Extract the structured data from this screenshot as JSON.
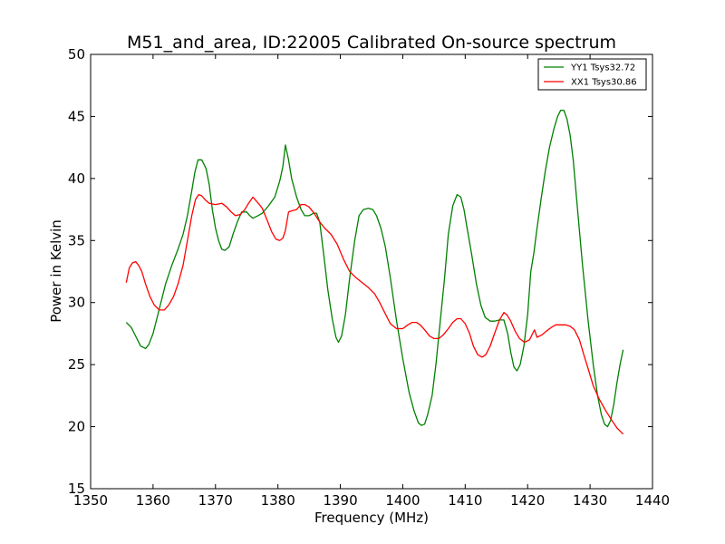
{
  "chart_data": {
    "type": "line",
    "title": "M51_and_area, ID:22005 Calibrated On-source spectrum",
    "xlabel": "Frequency (MHz)",
    "ylabel": "Power in Kelvin",
    "xlim": [
      1350,
      1440
    ],
    "ylim": [
      15,
      50
    ],
    "xticks": [
      1350,
      1360,
      1370,
      1380,
      1390,
      1400,
      1410,
      1420,
      1430,
      1440
    ],
    "yticks": [
      15,
      20,
      25,
      30,
      35,
      40,
      45,
      50
    ],
    "grid": false,
    "legend_position": "top-right",
    "series": [
      {
        "name": "YY1 Tsys32.72",
        "color": "#008000",
        "x": [
          1355.7,
          1356.5,
          1357.3,
          1358,
          1358.8,
          1359.3,
          1360,
          1361,
          1362,
          1363,
          1364,
          1364.8,
          1365.5,
          1366.2,
          1366.7,
          1367.2,
          1367.8,
          1368.5,
          1369,
          1369.5,
          1370,
          1370.5,
          1371,
          1371.5,
          1372.2,
          1372.8,
          1373.5,
          1374.2,
          1375,
          1375.5,
          1376,
          1376.8,
          1377.5,
          1378.5,
          1379.5,
          1380.3,
          1380.8,
          1381.2,
          1381.7,
          1382.2,
          1383,
          1383.7,
          1384.3,
          1385,
          1385.7,
          1386.2,
          1386.7,
          1387.3,
          1388,
          1388.7,
          1389.3,
          1389.7,
          1390.2,
          1390.8,
          1391.5,
          1392.3,
          1393,
          1393.7,
          1394.5,
          1395.2,
          1395.8,
          1396.5,
          1397.2,
          1398,
          1399,
          1400,
          1401,
          1401.8,
          1402.5,
          1403,
          1403.5,
          1404,
          1404.7,
          1405.3,
          1406,
          1406.7,
          1407.3,
          1408,
          1408.7,
          1409.3,
          1409.8,
          1410.3,
          1411,
          1411.8,
          1412.5,
          1413.2,
          1414,
          1414.7,
          1415.5,
          1416.2,
          1416.8,
          1417.3,
          1417.8,
          1418.3,
          1418.8,
          1419.4,
          1420,
          1420.5,
          1421,
          1421.5,
          1422.2,
          1422.8,
          1423.5,
          1424.2,
          1424.8,
          1425.3,
          1425.8,
          1426.3,
          1426.8,
          1427.3,
          1428,
          1428.8,
          1429.7,
          1430.5,
          1431.2,
          1431.8,
          1432.3,
          1432.8,
          1433.3,
          1433.8,
          1434.3,
          1434.8,
          1435.3
        ],
        "y": [
          28.4,
          28,
          27.2,
          26.5,
          26.3,
          26.6,
          27.5,
          29.5,
          31.5,
          33,
          34.3,
          35.5,
          37,
          39,
          40.5,
          41.5,
          41.5,
          40.8,
          39.5,
          37.5,
          36,
          35,
          34.3,
          34.2,
          34.5,
          35.5,
          36.5,
          37.3,
          37.3,
          37,
          36.8,
          37,
          37.2,
          37.8,
          38.5,
          39.8,
          41,
          42.7,
          41.5,
          40,
          38.5,
          37.5,
          37,
          37,
          37.2,
          37.2,
          36.5,
          34,
          31,
          28.7,
          27.2,
          26.8,
          27.3,
          29,
          32,
          35,
          37,
          37.5,
          37.6,
          37.5,
          37,
          36,
          34.5,
          32,
          28.5,
          25.5,
          22.8,
          21.3,
          20.3,
          20.1,
          20.2,
          21,
          22.5,
          25,
          28.5,
          32,
          35.5,
          37.8,
          38.7,
          38.5,
          37.5,
          36,
          34,
          31.5,
          29.8,
          28.8,
          28.5,
          28.5,
          28.6,
          28.6,
          27.5,
          26,
          24.8,
          24.5,
          25,
          26.5,
          29,
          32.5,
          34,
          36,
          38.5,
          40.5,
          42.5,
          44,
          45,
          45.5,
          45.5,
          44.8,
          43.5,
          41.5,
          37.5,
          33,
          28.5,
          25,
          22.5,
          21,
          20.2,
          20,
          20.5,
          21.8,
          23.5,
          25,
          26.2
        ]
      },
      {
        "name": "XX1 Tsys30.86",
        "color": "#ff0000",
        "x": [
          1355.7,
          1356.2,
          1356.7,
          1357.2,
          1357.7,
          1358.2,
          1358.8,
          1359.5,
          1360.2,
          1361,
          1361.8,
          1362.5,
          1363.3,
          1364,
          1364.8,
          1365.5,
          1366.2,
          1366.8,
          1367.3,
          1367.8,
          1368.3,
          1369,
          1370,
          1371,
          1371.8,
          1372.5,
          1373.2,
          1374,
          1374.7,
          1375.3,
          1376,
          1376.7,
          1377.5,
          1378.3,
          1379,
          1379.7,
          1380.3,
          1380.8,
          1381.2,
          1381.7,
          1382.3,
          1383,
          1383.7,
          1384.3,
          1385,
          1385.8,
          1386.7,
          1387.5,
          1388.5,
          1389.5,
          1390.5,
          1391.5,
          1392.5,
          1393.5,
          1394.5,
          1395.5,
          1396.3,
          1397,
          1398,
          1399,
          1400,
          1400.8,
          1401.5,
          1402.2,
          1402.8,
          1403.5,
          1404.3,
          1405,
          1405.8,
          1406.5,
          1407.3,
          1408,
          1408.7,
          1409.3,
          1410,
          1410.7,
          1411.3,
          1412,
          1412.7,
          1413.3,
          1414,
          1414.7,
          1415.5,
          1416.2,
          1416.7,
          1417.3,
          1418,
          1418.7,
          1419.5,
          1420.3,
          1420.8,
          1421.1,
          1421.5,
          1422.3,
          1423,
          1423.8,
          1424.5,
          1425.3,
          1426,
          1426.8,
          1427.5,
          1428.3,
          1429,
          1429.8,
          1430.5,
          1431.5,
          1432.5,
          1433.5,
          1434.3,
          1435.3
        ],
        "y": [
          31.6,
          32.8,
          33.2,
          33.3,
          33,
          32.5,
          31.5,
          30.5,
          29.8,
          29.4,
          29.4,
          29.8,
          30.5,
          31.5,
          33,
          35,
          37,
          38.3,
          38.7,
          38.6,
          38.3,
          38,
          37.9,
          38,
          37.7,
          37.3,
          37,
          37.1,
          37.5,
          38,
          38.5,
          38.1,
          37.6,
          36.6,
          35.7,
          35.1,
          35,
          35.2,
          35.8,
          37.3,
          37.4,
          37.5,
          37.9,
          37.9,
          37.7,
          37.2,
          36.5,
          36,
          35.5,
          34.7,
          33.5,
          32.5,
          32,
          31.6,
          31.2,
          30.7,
          30,
          29.3,
          28.3,
          27.9,
          27.9,
          28.2,
          28.4,
          28.4,
          28.2,
          27.8,
          27.3,
          27.1,
          27.1,
          27.4,
          27.9,
          28.4,
          28.7,
          28.7,
          28.3,
          27.5,
          26.5,
          25.8,
          25.6,
          25.8,
          26.5,
          27.5,
          28.6,
          29.2,
          29,
          28.5,
          27.7,
          27.1,
          26.8,
          27,
          27.5,
          27.8,
          27.2,
          27.4,
          27.7,
          28,
          28.2,
          28.2,
          28.2,
          28.1,
          27.8,
          27,
          25.8,
          24.5,
          23.3,
          22.2,
          21.3,
          20.5,
          19.9,
          19.4
        ]
      }
    ]
  }
}
